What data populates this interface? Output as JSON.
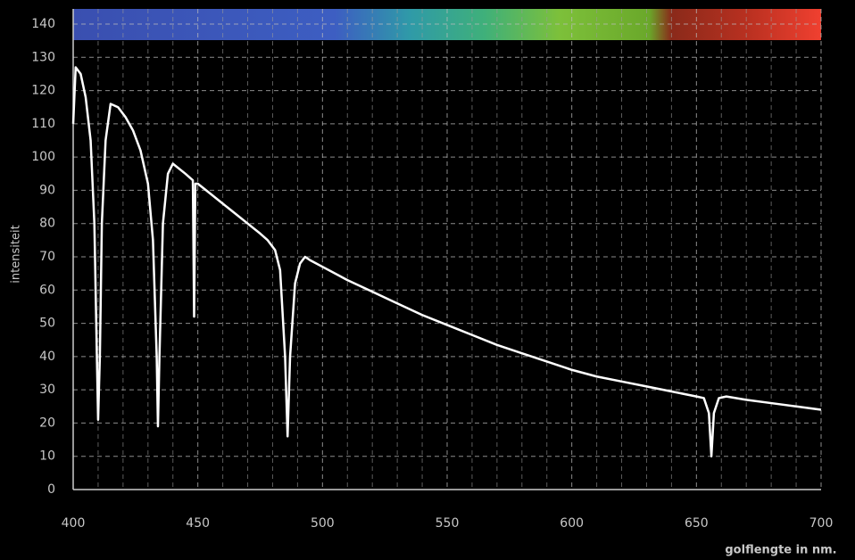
{
  "chart_data": {
    "type": "line",
    "x_label": "golflengte in nm.",
    "y_label": "intensiteit",
    "x": [
      400,
      401,
      403,
      405,
      407,
      408.5,
      409.5,
      410,
      410.7,
      411.5,
      413,
      415,
      418,
      421,
      424,
      427,
      430,
      432,
      433.5,
      434,
      434.6,
      436,
      438,
      440,
      445,
      448,
      448.5,
      449,
      450,
      455,
      460,
      465,
      470,
      475,
      478,
      481,
      483,
      485,
      486,
      487,
      489,
      491,
      493,
      495,
      500,
      510,
      520,
      530,
      540,
      550,
      560,
      570,
      580,
      590,
      600,
      610,
      620,
      630,
      640,
      650,
      653,
      655,
      656,
      657,
      659,
      662,
      670,
      680,
      690,
      700
    ],
    "series": [
      {
        "color": "#ffffff",
        "values": [
          110,
          127,
          125,
          118,
          105,
          80,
          40,
          21,
          40,
          80,
          105,
          116,
          115,
          112,
          108,
          102,
          92,
          75,
          40,
          19,
          40,
          80,
          95,
          98,
          95,
          93,
          52,
          92,
          92,
          89,
          86,
          83,
          80,
          77,
          75,
          72,
          66,
          40,
          16,
          40,
          62,
          68,
          70,
          69,
          67,
          63,
          59.5,
          56,
          52.5,
          49.5,
          46.5,
          43.5,
          41,
          38.5,
          36,
          34,
          32.5,
          31,
          29.5,
          28,
          27.5,
          23,
          10,
          23,
          27.5,
          28,
          27,
          26,
          25,
          24
        ]
      }
    ],
    "xlim": [
      400,
      700
    ],
    "xticks": [
      400,
      450,
      500,
      550,
      600,
      650,
      700
    ],
    "ylim": [
      0,
      140
    ],
    "yticks": [
      0,
      10,
      20,
      30,
      40,
      50,
      60,
      70,
      80,
      90,
      100,
      110,
      120,
      130,
      140
    ],
    "grid": true
  }
}
